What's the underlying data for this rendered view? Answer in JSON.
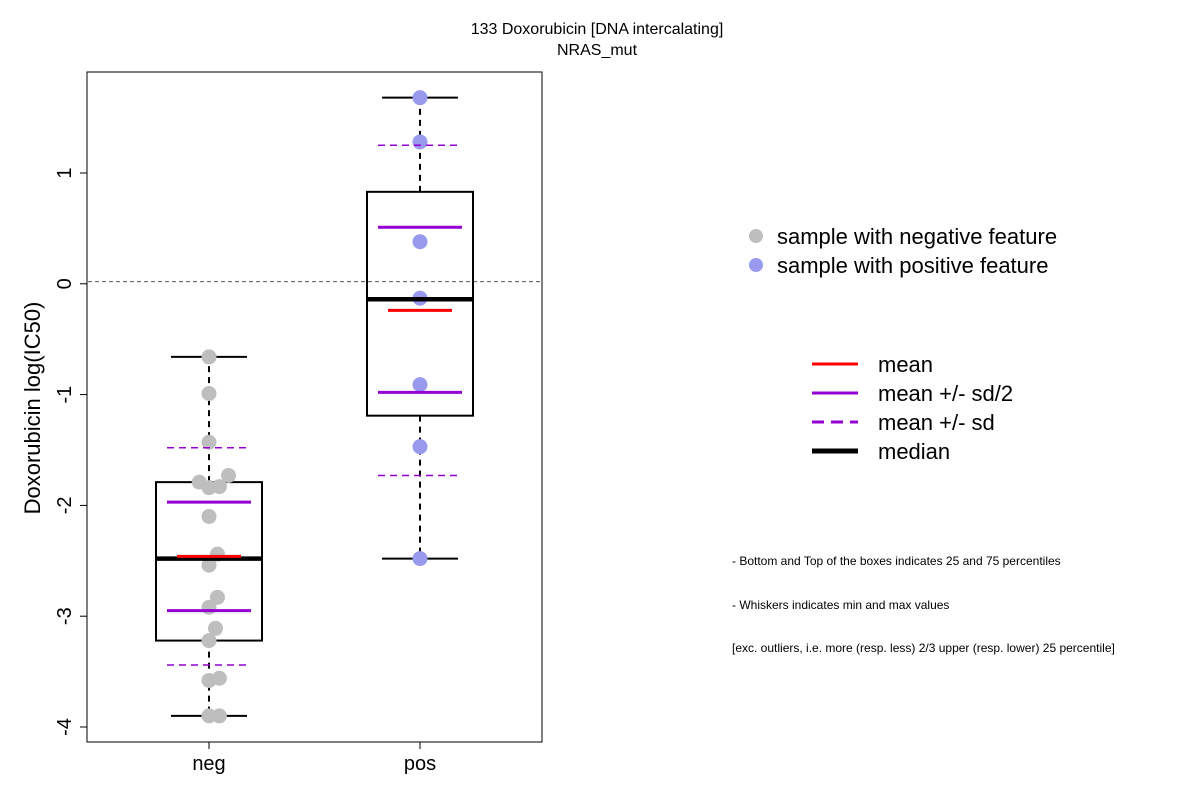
{
  "chart_data": {
    "type": "box",
    "title": "133 Doxorubicin [DNA intercalating]",
    "subtitle": "NRAS_mut",
    "ylabel": "Doxorubicin log(IC50)",
    "xlabel": "",
    "ylim": [
      -4.15,
      1.9
    ],
    "yticks": [
      -4,
      -3,
      -2,
      -1,
      0,
      1
    ],
    "categories": [
      "neg",
      "pos"
    ],
    "reference_line": 0.02,
    "grid": false,
    "groups": [
      {
        "name": "neg",
        "color": "#bebebe",
        "whisker_low": -3.9,
        "q1": -3.22,
        "median": -2.48,
        "q3": -1.79,
        "whisker_high": -0.66,
        "mean": -2.46,
        "mean_minus_half_sd": -2.95,
        "mean_plus_half_sd": -1.97,
        "mean_minus_sd": -3.44,
        "mean_plus_sd": -1.48,
        "points": [
          {
            "x": 0.0,
            "y": -0.66
          },
          {
            "x": 0.0,
            "y": -0.99
          },
          {
            "x": 0.0,
            "y": -1.43
          },
          {
            "x": 0.3,
            "y": -1.73
          },
          {
            "x": -0.15,
            "y": -1.79
          },
          {
            "x": 0.0,
            "y": -1.84
          },
          {
            "x": 0.16,
            "y": -1.83
          },
          {
            "x": 0.0,
            "y": -2.1
          },
          {
            "x": 0.13,
            "y": -2.44
          },
          {
            "x": 0.0,
            "y": -2.54
          },
          {
            "x": 0.13,
            "y": -2.83
          },
          {
            "x": 0.0,
            "y": -2.92
          },
          {
            "x": 0.1,
            "y": -3.11
          },
          {
            "x": 0.0,
            "y": -3.22
          },
          {
            "x": 0.16,
            "y": -3.56
          },
          {
            "x": 0.0,
            "y": -3.58
          },
          {
            "x": 0.0,
            "y": -3.9
          },
          {
            "x": 0.16,
            "y": -3.9
          }
        ]
      },
      {
        "name": "pos",
        "color": "#9999ee",
        "whisker_low": -2.48,
        "q1": -1.19,
        "median": -0.14,
        "q3": 0.83,
        "whisker_high": 1.68,
        "mean": -0.24,
        "mean_minus_half_sd": -0.98,
        "mean_plus_half_sd": 0.51,
        "mean_minus_sd": -1.73,
        "mean_plus_sd": 1.25,
        "points": [
          {
            "x": 0.0,
            "y": 1.68
          },
          {
            "x": 0.0,
            "y": 1.28
          },
          {
            "x": 0.0,
            "y": 0.38
          },
          {
            "x": 0.0,
            "y": -0.13
          },
          {
            "x": 0.0,
            "y": -0.91
          },
          {
            "x": 0.0,
            "y": -1.47
          },
          {
            "x": 0.0,
            "y": -2.48
          }
        ]
      }
    ],
    "legend_points": [
      {
        "label": "sample with negative feature",
        "color": "#bebebe"
      },
      {
        "label": "sample with positive feature",
        "color": "#9999ee"
      }
    ],
    "legend_lines": [
      {
        "label": "mean",
        "color": "#ff0000",
        "style": "solid"
      },
      {
        "label": "mean +/- sd/2",
        "color": "#9400d3",
        "style": "solid"
      },
      {
        "label": "mean +/- sd",
        "color": "#9400d3",
        "style": "dashed"
      },
      {
        "label": "median",
        "color": "#000000",
        "style": "bold"
      }
    ],
    "notes": [
      "- Bottom and Top of the boxes indicates 25 and 75 percentiles",
      "- Whiskers indicates min and max values",
      "[exc. outliers, i.e. more (resp. less) 2/3 upper (resp. lower) 25 percentile]"
    ]
  }
}
